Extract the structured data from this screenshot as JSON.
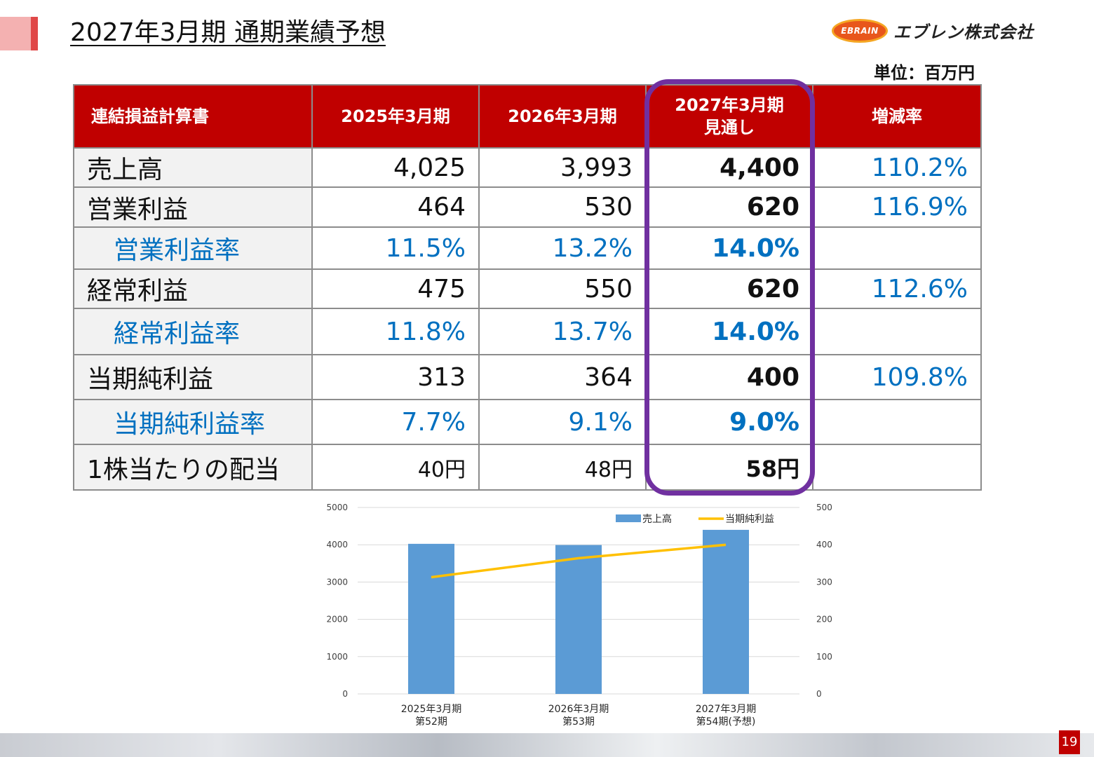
{
  "slide": {
    "title": "2027年3月期 通期業績予想",
    "unit": "単位：百万円",
    "page_number": "19"
  },
  "logo": {
    "mark_text": "EBRAIN",
    "company_name": "エブレン株式会社"
  },
  "table": {
    "headers": [
      "連結損益計算書",
      "2025年3月期",
      "2026年3月期",
      "2027年3月期\n見通し",
      "増減率"
    ],
    "rows": [
      {
        "label": "売上高",
        "fy2025": "4,025",
        "fy2026": "3,993",
        "fy2027": "4,400",
        "change": "110.2%"
      },
      {
        "label": "営業利益",
        "fy2025": "464",
        "fy2026": "530",
        "fy2027": "620",
        "change": "116.9%"
      },
      {
        "label": "営業利益率",
        "fy2025": "11.5%",
        "fy2026": "13.2%",
        "fy2027": "14.0%",
        "change": ""
      },
      {
        "label": "経常利益",
        "fy2025": "475",
        "fy2026": "550",
        "fy2027": "620",
        "change": "112.6%"
      },
      {
        "label": "経常利益率",
        "fy2025": "11.8%",
        "fy2026": "13.7%",
        "fy2027": "14.0%",
        "change": ""
      },
      {
        "label": "当期純利益",
        "fy2025": "313",
        "fy2026": "364",
        "fy2027": "400",
        "change": "109.8%"
      },
      {
        "label": "当期純利益率",
        "fy2025": "7.7%",
        "fy2026": "9.1%",
        "fy2027": "9.0%",
        "change": ""
      },
      {
        "label": "1株当たりの配当",
        "fy2025": "40円",
        "fy2026": "48円",
        "fy2027": "58円",
        "change": ""
      }
    ]
  },
  "colors": {
    "header_bg": "#c00000",
    "accent_blue": "#0070c0",
    "highlight_frame": "#7030a0",
    "bar": "#5b9bd5",
    "line": "#ffc000"
  },
  "chart_data": {
    "type": "bar",
    "categories": [
      "2025年3月期\n第52期",
      "2026年3月期\n第53期",
      "2027年3月期\n第54期(予想)"
    ],
    "series": [
      {
        "name": "売上高",
        "type": "bar",
        "axis": "left",
        "values": [
          4025,
          3993,
          4400
        ]
      },
      {
        "name": "当期純利益",
        "type": "line",
        "axis": "right",
        "values": [
          313,
          364,
          400
        ]
      }
    ],
    "ylim": [
      0,
      5000
    ],
    "yticks": [
      0,
      1000,
      2000,
      3000,
      4000,
      5000
    ],
    "y2lim": [
      0,
      500
    ],
    "y2ticks": [
      0,
      100,
      200,
      300,
      400,
      500
    ],
    "grid": true,
    "legend": "top-right"
  }
}
